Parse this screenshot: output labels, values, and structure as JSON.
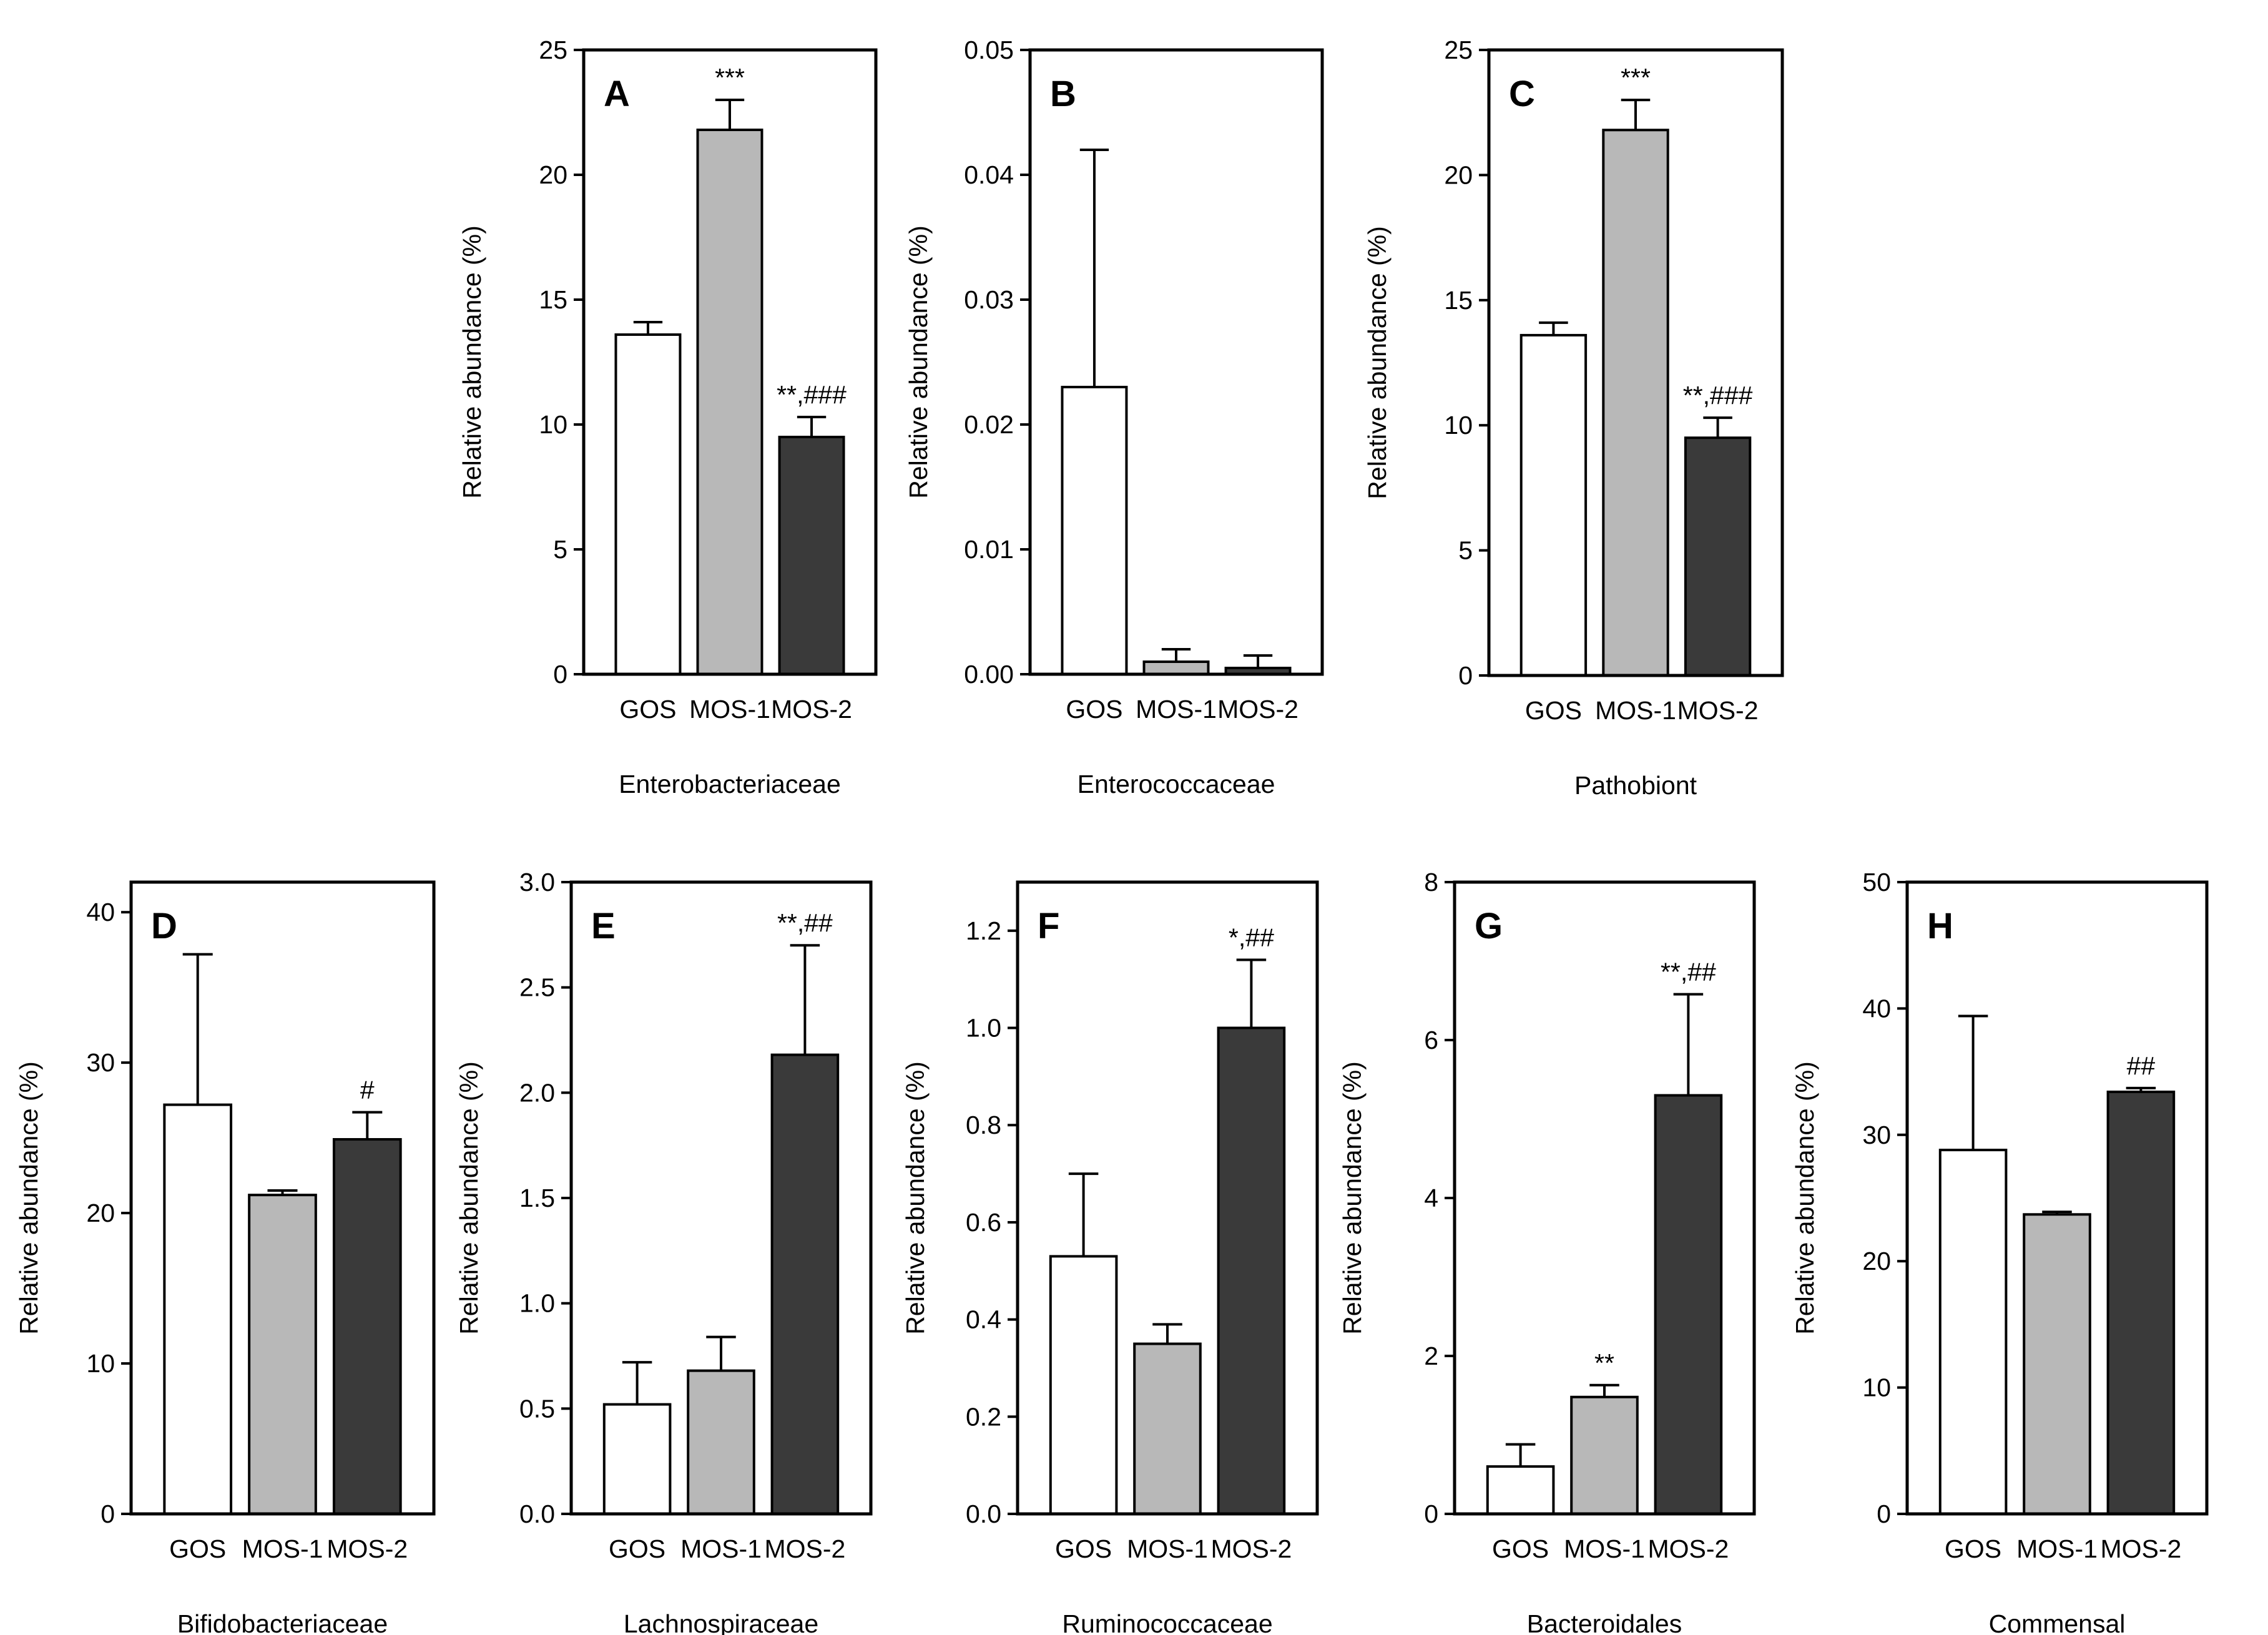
{
  "colors": {
    "GOS": "#ffffff",
    "MOS-1": "#b8b8b8",
    "MOS-2": "#3a3a3a",
    "axis": "#000000"
  },
  "chart_data": [
    {
      "type": "bar",
      "panel": "A",
      "xlabel": "Enterobacteriaceae",
      "ylabel": "Relative abundance (%)",
      "categories": [
        "GOS",
        "MOS-1",
        "MOS-2"
      ],
      "values": [
        13.6,
        21.8,
        9.5
      ],
      "errors": [
        0.5,
        1.2,
        0.8
      ],
      "annotations": [
        "",
        "***",
        "**,###"
      ],
      "ylim": [
        0,
        25
      ],
      "yticks": [
        0,
        5,
        10,
        15,
        20,
        25
      ],
      "ytick_labels": [
        "0",
        "5",
        "10",
        "15",
        "20",
        "25"
      ]
    },
    {
      "type": "bar",
      "panel": "B",
      "xlabel": "Enterococcaceae",
      "ylabel": "Relative abundance (%)",
      "categories": [
        "GOS",
        "MOS-1",
        "MOS-2"
      ],
      "values": [
        0.023,
        0.001,
        0.0005
      ],
      "errors": [
        0.019,
        0.001,
        0.001
      ],
      "annotations": [
        "",
        "",
        ""
      ],
      "ylim": [
        0,
        0.05
      ],
      "yticks": [
        0,
        0.01,
        0.02,
        0.03,
        0.04,
        0.05
      ],
      "ytick_labels": [
        "0.00",
        "0.01",
        "0.02",
        "0.03",
        "0.04",
        "0.05"
      ]
    },
    {
      "type": "bar",
      "panel": "C",
      "xlabel": "Pathobiont",
      "ylabel": "Relative abundance (%)",
      "categories": [
        "GOS",
        "MOS-1",
        "MOS-2"
      ],
      "values": [
        13.6,
        21.8,
        9.5
      ],
      "errors": [
        0.5,
        1.2,
        0.8
      ],
      "annotations": [
        "",
        "***",
        "**,###"
      ],
      "ylim": [
        0,
        25
      ],
      "yticks": [
        0,
        5,
        10,
        15,
        20,
        25
      ],
      "ytick_labels": [
        "0",
        "5",
        "10",
        "15",
        "20",
        "25"
      ]
    },
    {
      "type": "bar",
      "panel": "D",
      "xlabel": "Bifidobacteriaceae",
      "ylabel": "Relative abundance (%)",
      "categories": [
        "GOS",
        "MOS-1",
        "MOS-2"
      ],
      "values": [
        27.2,
        21.2,
        24.9
      ],
      "errors": [
        10.0,
        0.3,
        1.8
      ],
      "annotations": [
        "",
        "",
        "#"
      ],
      "ylim": [
        0,
        42
      ],
      "yticks": [
        0,
        10,
        20,
        30,
        40
      ],
      "ytick_labels": [
        "0",
        "10",
        "20",
        "30",
        "40"
      ]
    },
    {
      "type": "bar",
      "panel": "E",
      "xlabel": "Lachnospiraceae",
      "ylabel": "Relative abundance (%)",
      "categories": [
        "GOS",
        "MOS-1",
        "MOS-2"
      ],
      "values": [
        0.52,
        0.68,
        2.18
      ],
      "errors": [
        0.2,
        0.16,
        0.52
      ],
      "annotations": [
        "",
        "",
        "**,##"
      ],
      "ylim": [
        0,
        3.0
      ],
      "yticks": [
        0,
        0.5,
        1.0,
        1.5,
        2.0,
        2.5,
        3.0
      ],
      "ytick_labels": [
        "0.0",
        "0.5",
        "1.0",
        "1.5",
        "2.0",
        "2.5",
        "3.0"
      ]
    },
    {
      "type": "bar",
      "panel": "F",
      "xlabel": "Ruminococcaceae",
      "ylabel": "Relative abundance (%)",
      "categories": [
        "GOS",
        "MOS-1",
        "MOS-2"
      ],
      "values": [
        0.53,
        0.35,
        1.0
      ],
      "errors": [
        0.17,
        0.04,
        0.14
      ],
      "annotations": [
        "",
        "",
        "*,##"
      ],
      "ylim": [
        0,
        1.3
      ],
      "yticks": [
        0,
        0.2,
        0.4,
        0.6,
        0.8,
        1.0,
        1.2
      ],
      "ytick_labels": [
        "0.0",
        "0.2",
        "0.4",
        "0.6",
        "0.8",
        "1.0",
        "1.2"
      ]
    },
    {
      "type": "bar",
      "panel": "G",
      "xlabel": "Bacteroidales",
      "ylabel": "Relative abundance (%)",
      "categories": [
        "GOS",
        "MOS-1",
        "MOS-2"
      ],
      "values": [
        0.6,
        1.48,
        5.3
      ],
      "errors": [
        0.28,
        0.15,
        1.28
      ],
      "annotations": [
        "",
        "**",
        "**,##"
      ],
      "ylim": [
        0,
        8
      ],
      "yticks": [
        0,
        2,
        4,
        6,
        8
      ],
      "ytick_labels": [
        "0",
        "2",
        "4",
        "6",
        "8"
      ]
    },
    {
      "type": "bar",
      "panel": "H",
      "xlabel": "Commensal",
      "ylabel": "Relative abundance (%)",
      "categories": [
        "GOS",
        "MOS-1",
        "MOS-2"
      ],
      "values": [
        28.8,
        23.7,
        33.4
      ],
      "errors": [
        10.6,
        0.2,
        0.3
      ],
      "annotations": [
        "",
        "",
        "##"
      ],
      "ylim": [
        0,
        50
      ],
      "yticks": [
        0,
        10,
        20,
        30,
        40,
        50
      ],
      "ytick_labels": [
        "0",
        "10",
        "20",
        "30",
        "40",
        "50"
      ]
    }
  ]
}
